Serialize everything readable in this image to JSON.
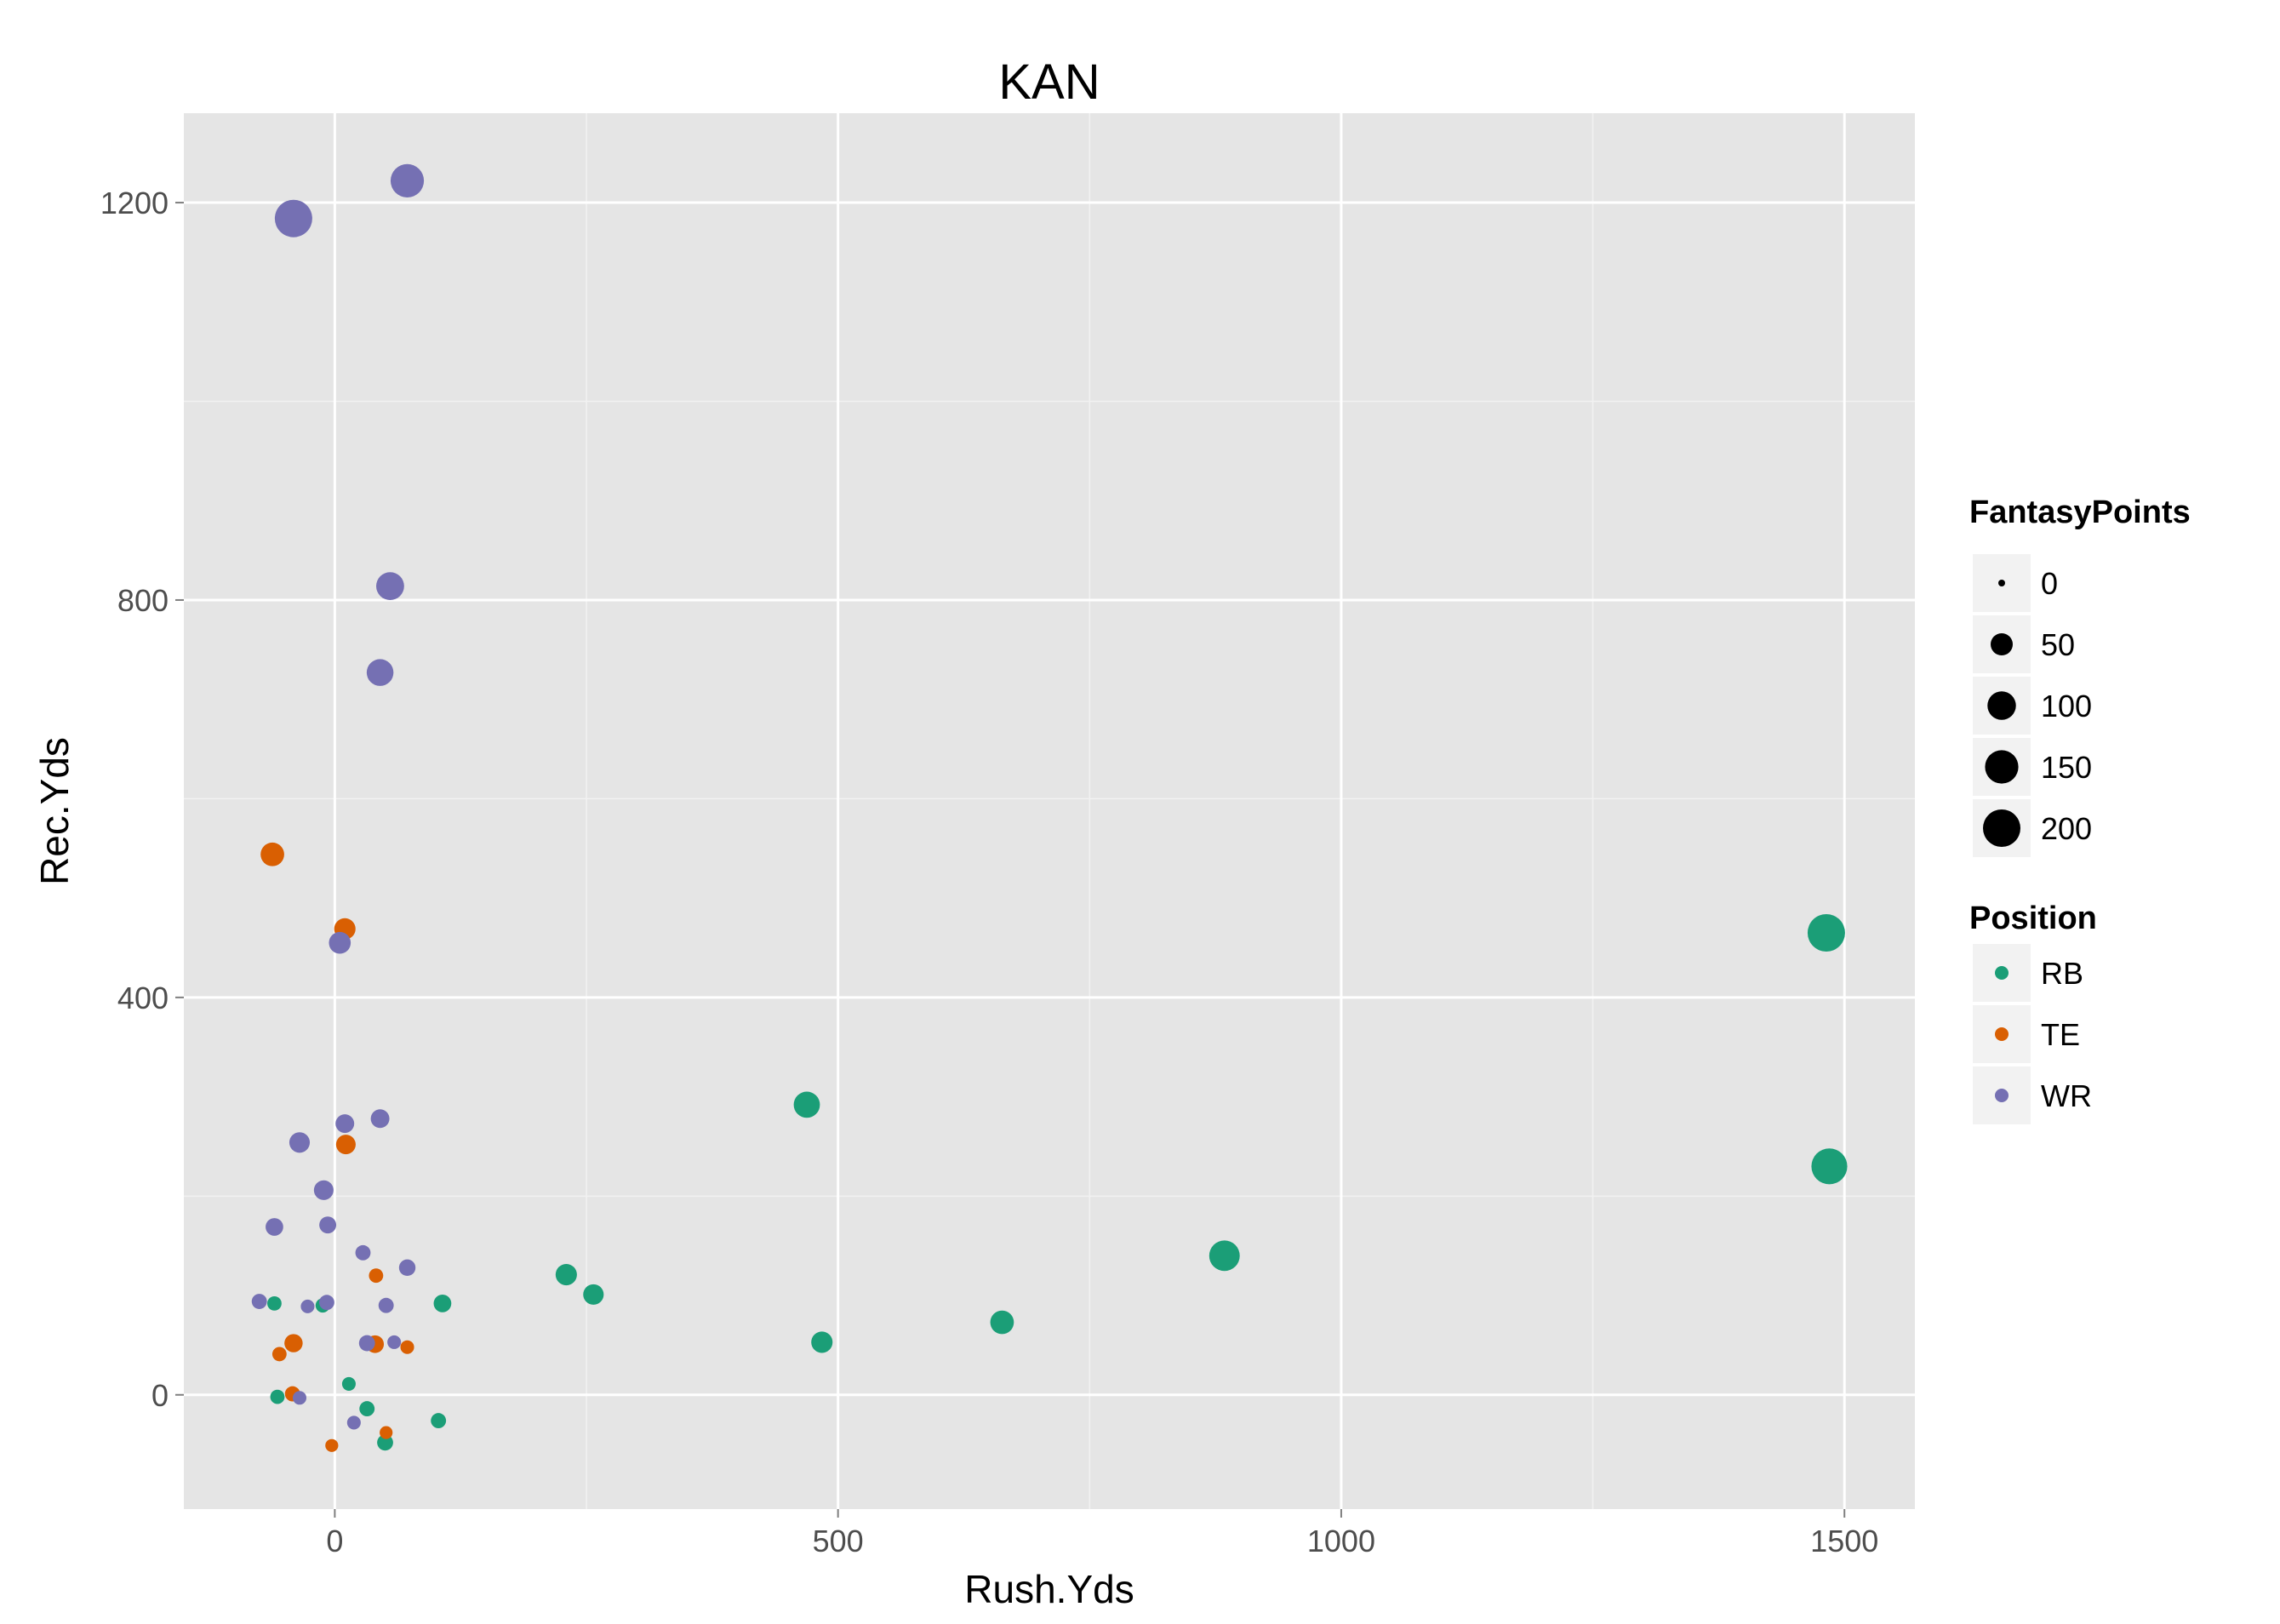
{
  "chart_data": {
    "type": "scatter",
    "title": "KAN",
    "xlabel": "Rush.Yds",
    "ylabel": "Rec.Yds",
    "xlim": [
      -150,
      1570
    ],
    "ylim": [
      -115,
      1290
    ],
    "x_ticks": [
      0,
      500,
      1000,
      1500
    ],
    "y_ticks": [
      0,
      400,
      800,
      1200
    ],
    "x_tick_labels": [
      "0",
      "500",
      "1000",
      "1500"
    ],
    "y_tick_labels": [
      "0",
      "400",
      "800",
      "1200"
    ],
    "grid": true,
    "size_legend": {
      "title": "FantasyPoints",
      "values": [
        0,
        50,
        100,
        150,
        200
      ],
      "labels": [
        "0",
        "50",
        "100",
        "150",
        "200"
      ]
    },
    "color_legend": {
      "title": "Position",
      "placement": "right"
    },
    "series": [
      {
        "name": "RB",
        "color": "#1b9e77",
        "points": [
          {
            "x": 1482,
            "y": 465,
            "size": 200
          },
          {
            "x": 1485,
            "y": 230,
            "size": 180
          },
          {
            "x": 884,
            "y": 140,
            "size": 120
          },
          {
            "x": 469,
            "y": 292,
            "size": 80
          },
          {
            "x": 663,
            "y": 73,
            "size": 60
          },
          {
            "x": 484,
            "y": 53,
            "size": 45
          },
          {
            "x": 230,
            "y": 121,
            "size": 45
          },
          {
            "x": 257,
            "y": 101,
            "size": 40
          },
          {
            "x": 107,
            "y": 92,
            "size": 25
          },
          {
            "x": 103,
            "y": -26,
            "size": 15
          },
          {
            "x": -60,
            "y": 92,
            "size": 12
          },
          {
            "x": -57,
            "y": -2,
            "size": 12
          },
          {
            "x": -12,
            "y": 90,
            "size": 12
          },
          {
            "x": 32,
            "y": -14,
            "size": 15
          },
          {
            "x": 50,
            "y": -48,
            "size": 18
          },
          {
            "x": 14,
            "y": 11,
            "size": 10
          }
        ]
      },
      {
        "name": "TE",
        "color": "#d95f02",
        "points": [
          {
            "x": -62,
            "y": 544,
            "size": 60
          },
          {
            "x": 10,
            "y": 469,
            "size": 45
          },
          {
            "x": 11,
            "y": 252,
            "size": 35
          },
          {
            "x": 41,
            "y": 120,
            "size": 12
          },
          {
            "x": 40,
            "y": 51,
            "size": 25
          },
          {
            "x": -41,
            "y": 52,
            "size": 28
          },
          {
            "x": -55,
            "y": 41,
            "size": 12
          },
          {
            "x": 72,
            "y": 48,
            "size": 10
          },
          {
            "x": -42,
            "y": 1,
            "size": 15
          },
          {
            "x": 51,
            "y": -38,
            "size": 8
          },
          {
            "x": -3,
            "y": -51,
            "size": 8
          }
        ]
      },
      {
        "name": "WR",
        "color": "#7570b3",
        "points": [
          {
            "x": -41,
            "y": 1184,
            "size": 200
          },
          {
            "x": 72,
            "y": 1222,
            "size": 150
          },
          {
            "x": 55,
            "y": 814,
            "size": 95
          },
          {
            "x": 45,
            "y": 727,
            "size": 85
          },
          {
            "x": 5,
            "y": 455,
            "size": 48
          },
          {
            "x": -35,
            "y": 254,
            "size": 40
          },
          {
            "x": 45,
            "y": 278,
            "size": 30
          },
          {
            "x": 10,
            "y": 273,
            "size": 30
          },
          {
            "x": -11,
            "y": 206,
            "size": 35
          },
          {
            "x": -60,
            "y": 169,
            "size": 25
          },
          {
            "x": -7,
            "y": 171,
            "size": 22
          },
          {
            "x": 28,
            "y": 143,
            "size": 15
          },
          {
            "x": 72,
            "y": 128,
            "size": 20
          },
          {
            "x": -75,
            "y": 94,
            "size": 15
          },
          {
            "x": -27,
            "y": 89,
            "size": 10
          },
          {
            "x": -8,
            "y": 93,
            "size": 15
          },
          {
            "x": 51,
            "y": 90,
            "size": 15
          },
          {
            "x": 32,
            "y": 52,
            "size": 18
          },
          {
            "x": 59,
            "y": 53,
            "size": 10
          },
          {
            "x": -35,
            "y": -3,
            "size": 10
          },
          {
            "x": 19,
            "y": -28,
            "size": 10
          }
        ]
      }
    ]
  }
}
